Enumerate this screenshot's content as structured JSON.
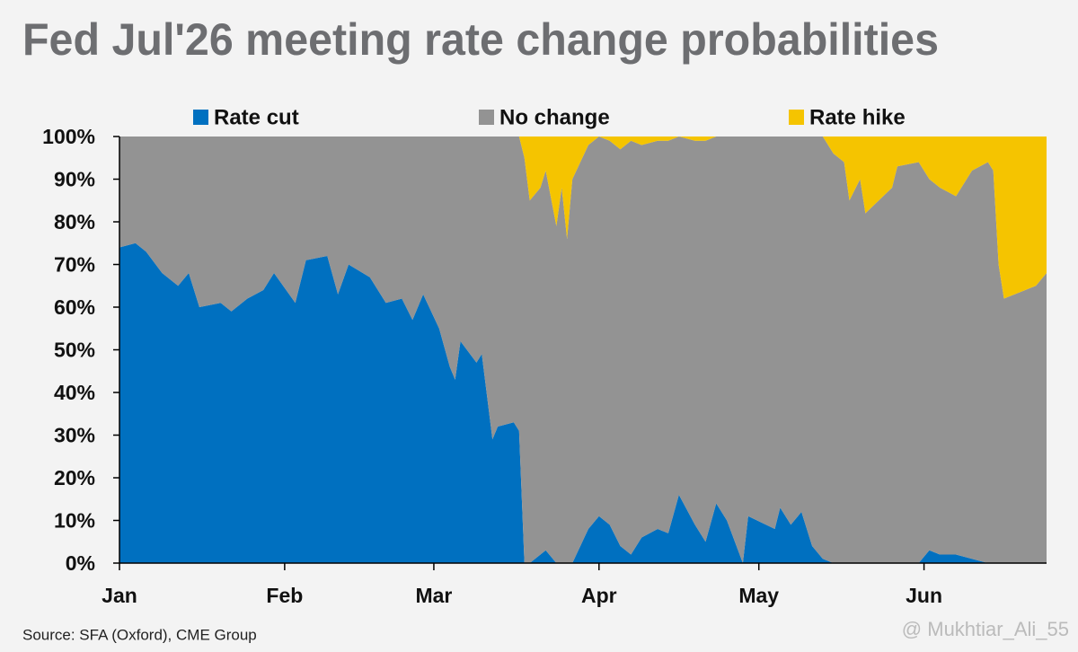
{
  "chart_data": {
    "type": "stacked-area",
    "title": "Fed Jul'26 meeting rate change probabilities",
    "source": "Source: SFA (Oxford), CME Group",
    "watermark": "@ Mukhtiar_Ali_55",
    "x": [
      0,
      3,
      5,
      8,
      11,
      13,
      15,
      19,
      21,
      24,
      27,
      29,
      33,
      35,
      39,
      41,
      43,
      47,
      50,
      53,
      55,
      57,
      60,
      62,
      63,
      64,
      67,
      68,
      70,
      71,
      74,
      75,
      76,
      77,
      79,
      80,
      82,
      83,
      84,
      85,
      88,
      90,
      92,
      94,
      96,
      98,
      101,
      103,
      105,
      108,
      110,
      112,
      114,
      117,
      118,
      123,
      124,
      126,
      128,
      130,
      132,
      134,
      136,
      137,
      139,
      140,
      145,
      146,
      150,
      152,
      154,
      157,
      160,
      163,
      164,
      165,
      166,
      170,
      172,
      174
    ],
    "xlim": [
      0,
      174
    ],
    "xticks": [
      {
        "value": 0,
        "label": "Jan"
      },
      {
        "value": 31,
        "label": "Feb"
      },
      {
        "value": 59,
        "label": "Mar"
      },
      {
        "value": 90,
        "label": "Apr"
      },
      {
        "value": 120,
        "label": "May"
      },
      {
        "value": 151,
        "label": "Jun"
      }
    ],
    "ylim": [
      0,
      100
    ],
    "yticks": [
      {
        "value": 0,
        "label": "0%"
      },
      {
        "value": 10,
        "label": "10%"
      },
      {
        "value": 20,
        "label": "20%"
      },
      {
        "value": 30,
        "label": "30%"
      },
      {
        "value": 40,
        "label": "40%"
      },
      {
        "value": 50,
        "label": "50%"
      },
      {
        "value": 60,
        "label": "60%"
      },
      {
        "value": 70,
        "label": "70%"
      },
      {
        "value": 80,
        "label": "80%"
      },
      {
        "value": 90,
        "label": "90%"
      },
      {
        "value": 100,
        "label": "100%"
      }
    ],
    "grid": false,
    "legend": "top",
    "series": [
      {
        "name": "Rate cut",
        "color": "#0070c0",
        "values": [
          74,
          75,
          73,
          68,
          65,
          68,
          60,
          61,
          59,
          62,
          64,
          68,
          61,
          71,
          72,
          63,
          70,
          67,
          61,
          62,
          57,
          63,
          55,
          46,
          43,
          52,
          47,
          49,
          29,
          32,
          33,
          31,
          0,
          0,
          2,
          3,
          0,
          0,
          0,
          0,
          8,
          11,
          9,
          4,
          2,
          6,
          8,
          7,
          16,
          9,
          5,
          14,
          10,
          0,
          11,
          8,
          13,
          9,
          12,
          4,
          1,
          0,
          0,
          0,
          0,
          0,
          0,
          0,
          0,
          3,
          2,
          2,
          1,
          0,
          0,
          0,
          0,
          0,
          0,
          0
        ]
      },
      {
        "name": "No change",
        "color": "#939393",
        "values": [
          26,
          25,
          27,
          32,
          35,
          32,
          40,
          39,
          41,
          38,
          36,
          32,
          39,
          29,
          28,
          37,
          30,
          33,
          39,
          38,
          43,
          37,
          45,
          54,
          57,
          48,
          53,
          51,
          71,
          68,
          67,
          69,
          95,
          85,
          86,
          89,
          79,
          88,
          76,
          90,
          90,
          89,
          90,
          93,
          97,
          92,
          91,
          92,
          84,
          90,
          94,
          86,
          90,
          100,
          89,
          92,
          87,
          91,
          88,
          96,
          99,
          96,
          94,
          85,
          90,
          82,
          88,
          93,
          94,
          87,
          86,
          84,
          91,
          94,
          92,
          70,
          62,
          64,
          65,
          68
        ]
      },
      {
        "name": "Rate hike",
        "color": "#f5c400",
        "values": [
          0,
          0,
          0,
          0,
          0,
          0,
          0,
          0,
          0,
          0,
          0,
          0,
          0,
          0,
          0,
          0,
          0,
          0,
          0,
          0,
          0,
          0,
          0,
          0,
          0,
          0,
          0,
          0,
          0,
          0,
          0,
          0,
          5,
          15,
          12,
          8,
          21,
          12,
          24,
          10,
          2,
          0,
          1,
          3,
          1,
          2,
          1,
          1,
          0,
          1,
          1,
          0,
          0,
          0,
          0,
          0,
          0,
          0,
          0,
          0,
          0,
          4,
          6,
          15,
          10,
          18,
          12,
          7,
          6,
          10,
          12,
          14,
          8,
          6,
          8,
          30,
          38,
          36,
          35,
          32
        ]
      }
    ]
  }
}
